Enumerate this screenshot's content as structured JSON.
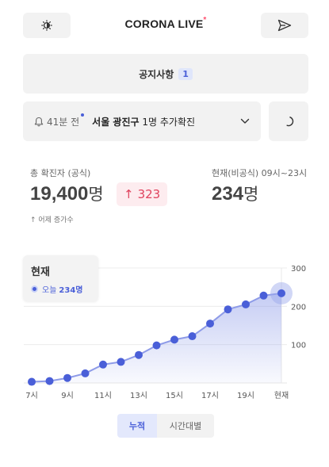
{
  "header": {
    "logo_main": "CORONA",
    "logo_live": "LIVE",
    "logo_dot": "*",
    "theme_icon": "brightness-half-icon",
    "share_icon": "send-plane-icon"
  },
  "notice": {
    "label": "공지사항",
    "count": "1"
  },
  "alert": {
    "time": "41분 전",
    "location": "서울 광진구",
    "message": " 1명 추가확진",
    "bell_icon": "bell-icon",
    "chevron_icon": "chevron-down-icon",
    "refresh_icon": "refresh-spinner-icon"
  },
  "stats": {
    "total_label": "총 확진자 (공식)",
    "total_value": "19,400",
    "total_unit": "명",
    "delta_arrow": "↑",
    "delta_value": "323",
    "delta_note": "↑ 어제 증가수",
    "current_label": "현재(비공식) 09시~23시",
    "current_value": "234",
    "current_unit": "명"
  },
  "legend": {
    "title": "현재",
    "today_label": "오늘",
    "today_value": "234명"
  },
  "colors": {
    "accent": "#4a5fd8",
    "accent_light": "#e3e8fc",
    "delta_red": "#e0435e"
  },
  "chart_data": {
    "type": "line",
    "x": [
      "7시",
      "8시",
      "9시",
      "10시",
      "11시",
      "12시",
      "13시",
      "14시",
      "15시",
      "16시",
      "17시",
      "18시",
      "19시",
      "20시",
      "현재"
    ],
    "x_tick_labels": [
      "7시",
      "9시",
      "11시",
      "13시",
      "15시",
      "17시",
      "19시",
      "현재"
    ],
    "values": [
      3,
      5,
      13,
      25,
      48,
      55,
      73,
      98,
      113,
      122,
      155,
      192,
      205,
      228,
      234
    ],
    "yticks": [
      100,
      200,
      300
    ],
    "ylim": [
      0,
      300
    ],
    "grid": true,
    "area_fill": true,
    "highlight_last": true
  },
  "toggle": {
    "cumulative": "누적",
    "hourly": "시간대별"
  }
}
